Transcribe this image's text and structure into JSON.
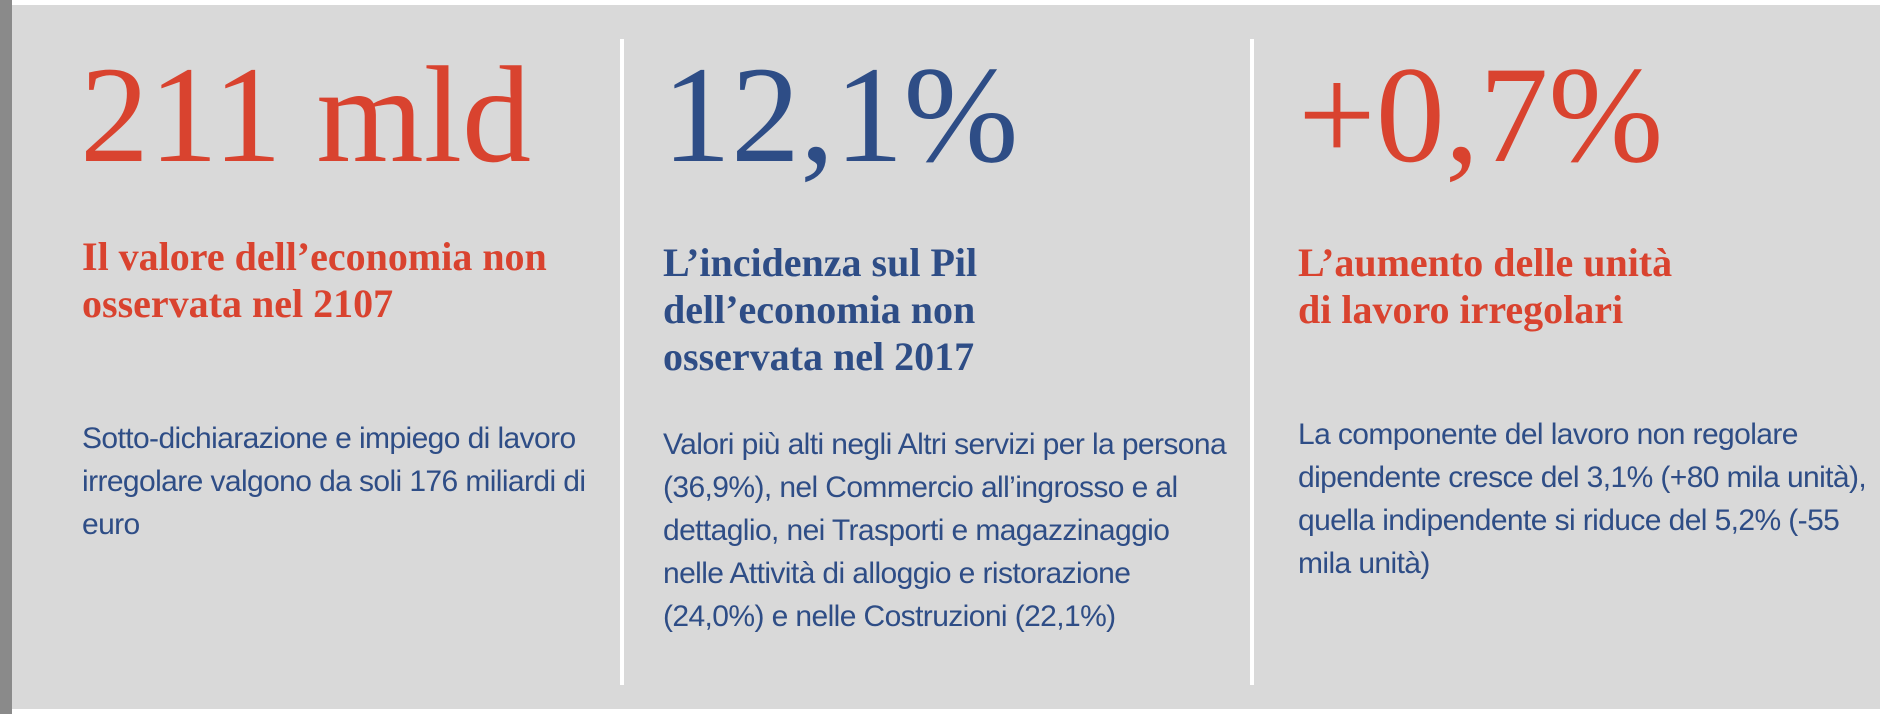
{
  "columns": [
    {
      "figure": "211 mld",
      "heading": "Il valore dell’economia non osservata nel 2107",
      "body": "Sotto-dichiarazione e impiego di lavoro irregolare valgono da soli 176 miliardi di euro"
    },
    {
      "figure": "12,1%",
      "heading": "L’incidenza sul Pil dell’economia non osservata nel 2017",
      "body": "Valori più alti negli Altri servizi per la persona (36,9%), nel Commercio all’ingrosso e al dettaglio, nei Trasporti e magazzinaggio nelle Attività di alloggio e ristorazione (24,0%) e nelle Costruzioni (22,1%)"
    },
    {
      "figure": "+0,7%",
      "heading": "L’aumento delle unità di lavoro irregolari",
      "body": "La componente del lavoro non regolare dipendente cresce del 3,1% (+80 mila unità), quella indipendente si riduce del 5,2% (-55 mila unità)"
    }
  ]
}
